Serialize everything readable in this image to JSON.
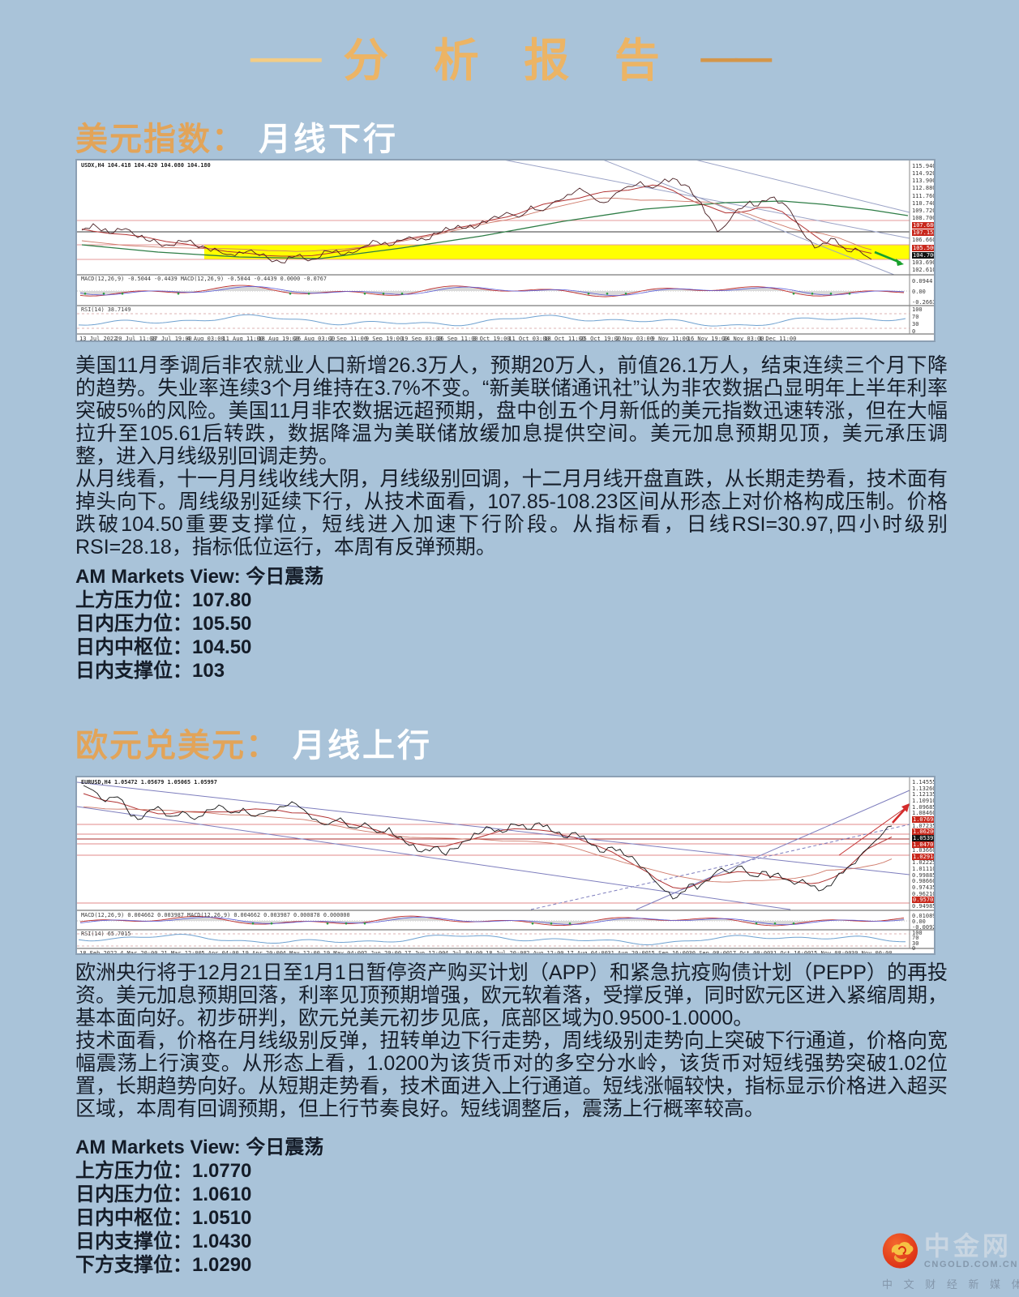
{
  "colors": {
    "background": "#A9C3D9",
    "title_orange": "#ECB465",
    "heading_orange": "#E2A459",
    "heading_white": "#FFFFFF",
    "body_text": "#161E2A",
    "band_yellow": "#FFFF00",
    "logo_red": "#DD2F14"
  },
  "title": {
    "dash_left": "——",
    "text": "分 析 报 告",
    "dash_right": "——"
  },
  "sections": [
    {
      "heading": {
        "name": "美元指数：",
        "trend": "月线下行"
      },
      "chart": {
        "type": "candlestick-line",
        "symbol": "USDX,H4  104.418 104.420 104.080 104.180",
        "macd_label": "MACD(12,26,9) -0.5044 -0.4439  MACD(12,26,9) -0.5044 -0.4439 0.0000 -0.0767",
        "rsi_label": "RSI(14) 38.7149",
        "y_ticks": [
          "115.940",
          "114.920",
          "113.900",
          "112.880",
          "111.760",
          "110.740",
          "109.720",
          "108.700",
          "107.680",
          "107.155",
          "106.660",
          "105.500",
          "104.700",
          "103.690",
          "102.610"
        ],
        "y_tick_styles": {
          "8": "red",
          "9": "red",
          "11": "red",
          "12": "black"
        },
        "macd_ticks": [
          "0.0944",
          "0.00",
          "-0.2663"
        ],
        "rsi_ticks": [
          "100",
          "70",
          "30",
          "0"
        ],
        "x_ticks": [
          "13 Jul 2022",
          "20 Jul 11:00",
          "27 Jul 19:00",
          "4 Aug 03:00",
          "11 Aug 11:00",
          "18 Aug 19:00",
          "26 Aug 03:00",
          "2 Sep 11:00",
          "9 Sep 19:00",
          "19 Sep 03:00",
          "26 Sep 11:00",
          "3 Oct 19:00",
          "11 Oct 03:00",
          "18 Oct 11:00",
          "25 Oct 19:00",
          "2 Nov 03:00",
          "9 Nov 11:00",
          "16 Nov 19:00",
          "24 Nov 03:00",
          "1 Dec 11:00"
        ]
      },
      "paragraphs": [
        "美国11月季调后非农就业人口新增26.3万人，预期20万人，前值26.1万人，结束连续三个月下降的趋势。失业率连续3个月维持在3.7%不变。“新美联储通讯社”认为非农数据凸显明年上半年利率突破5%的风险。美国11月非农数据远超预期，盘中创五个月新低的美元指数迅速转涨，但在大幅拉升至105.61后转跌，数据降温为美联储放缓加息提供空间。美元加息预期见顶，美元承压调整，进入月线级别回调走势。",
        "从月线看，十一月月线收线大阴，月线级别回调，十二月月线开盘直跌，从长期走势看，技术面有掉头向下。周线级别延续下行，从技术面看，107.85-108.23区间从形态上对价格构成压制。价格跌破104.50重要支撑位，短线进入加速下行阶段。从指标看，日线RSI=30.97,四小时级别RSI=28.18，指标低位运行，本周有反弹预期。"
      ],
      "view": {
        "label": "AM Markets View: 今日震荡",
        "levels": [
          "上方压力位：107.80",
          "日内压力位：105.50",
          "日内中枢位：104.50",
          "日内支撑位：103"
        ]
      }
    },
    {
      "heading": {
        "name": "欧元兑美元：",
        "trend": "月线上行"
      },
      "chart": {
        "type": "candlestick-line",
        "symbol": "EURUSD,H4  1.05472 1.05679 1.05065 1.05997",
        "macd_label": "MACD(12,26,9) 0.004662 0.003987  MACD(12,26,9) 0.004662 0.003987 0.000878 0.000000",
        "rsi_label": "RSI(14) 65.7015",
        "y_ticks": [
          "1.14555",
          "1.13260",
          "1.12135",
          "1.10910",
          "1.09685",
          "1.08460",
          "1.07698",
          "1.07235",
          "1.06200",
          "1.05397",
          "1.04701",
          "1.03660",
          "1.02914",
          "1.02225",
          "1.01110",
          "0.99885",
          "0.98660",
          "0.97435",
          "0.96210",
          "0.95702",
          "0.94985"
        ],
        "y_tick_styles": {
          "6": "red",
          "8": "red",
          "9": "black",
          "10": "red",
          "12": "red",
          "19": "red"
        },
        "macd_ticks": [
          "0.010898",
          "0.00",
          "-0.009224"
        ],
        "rsi_ticks": [
          "100",
          "70",
          "30",
          "0"
        ],
        "x_ticks": [
          "18 Feb 2022",
          "4 Mar 20:00",
          "21 Mar 12:00",
          "5 Apr 04:00",
          "19 Apr 20:00",
          "4 May 12:00",
          "19 May 04:00",
          "2 Jun 20:00",
          "17 Jun 12:00",
          "4 Jul 04:00",
          "18 Jul 20:00",
          "2 Aug 12:00",
          "17 Aug 04:00",
          "31 Aug 20:00",
          "15 Sep 16:00",
          "30 Sep 08:00",
          "17 Oct 00:00",
          "31 Oct 16:00",
          "15 Nov 08:00",
          "30 Nov 00:00"
        ]
      },
      "paragraphs": [
        "欧洲央行将于12月21日至1月1日暂停资产购买计划（APP）和紧急抗疫购债计划（PEPP）的再投资。美元加息预期回落，利率见顶预期增强，欧元软着落，受撑反弹，同时欧元区进入紧缩周期，基本面向好。初步研判，欧元兑美元初步见底，底部区域为0.9500-1.0000。",
        "技术面看，价格在月线级别反弹，扭转单边下行走势，周线级别走势向上突破下行通道，价格向宽幅震荡上行演变。从形态上看，1.0200为该货币对的多空分水岭，该货币对短线强势突破1.02位置，长期趋势向好。从短期走势看，技术面进入上行通道。短线涨幅较快，指标显示价格进入超买区域，本周有回调预期，但上行节奏良好。短线调整后，震荡上行概率较高。"
      ],
      "view": {
        "label": "AM Markets View: 今日震荡",
        "levels": [
          "上方压力位：1.0770",
          "日内压力位：1.0610",
          "日内中枢位：1.0510",
          "日内支撑位：1.0430",
          "下方支撑位：1.0290"
        ]
      }
    }
  ],
  "logo": {
    "name": "中金网",
    "domain": "CNGOLD.COM.CN",
    "tagline": "中 文 财 经 新 媒 体"
  }
}
